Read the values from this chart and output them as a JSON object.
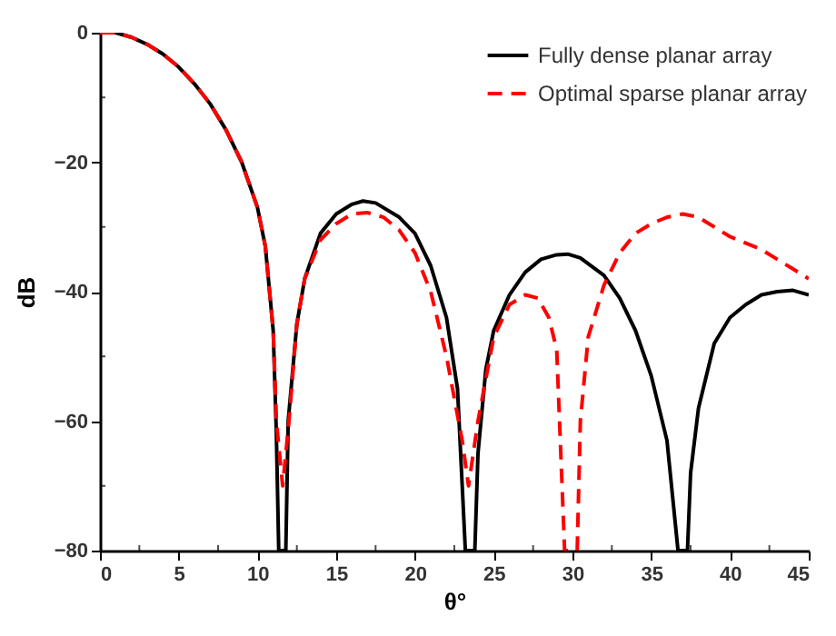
{
  "chart_data": {
    "type": "line",
    "xlabel": "θ°",
    "ylabel": "dB",
    "xlim": [
      0,
      45
    ],
    "ylim": [
      -80,
      0
    ],
    "xticks": [
      0,
      5,
      10,
      15,
      20,
      25,
      30,
      35,
      40,
      45
    ],
    "yticks": [
      -80,
      -60,
      -40,
      -20,
      0
    ],
    "legend": "top right",
    "series": [
      {
        "name": "Fully dense planar array",
        "color": "#000000",
        "line_style": "solid",
        "x": [
          0,
          1,
          2,
          3,
          4,
          5,
          6,
          7,
          8,
          9,
          10,
          10.5,
          11,
          11.2,
          11.35,
          11.8,
          11.95,
          12.5,
          13,
          14,
          15,
          16,
          16.7,
          17.5,
          19,
          20,
          21,
          22,
          22.7,
          23.2,
          23.8,
          24,
          24.5,
          25,
          26,
          27,
          28,
          29,
          29.7,
          30.5,
          32,
          33,
          34,
          35,
          36,
          36.7,
          37.3,
          37.5,
          38,
          39,
          40,
          41,
          42,
          43,
          44,
          45
        ],
        "values": [
          0,
          0,
          -0.7,
          -1.8,
          -3.3,
          -5.3,
          -7.9,
          -11,
          -15,
          -20,
          -27,
          -33,
          -46,
          -62,
          -80,
          -80,
          -60,
          -45,
          -38,
          -31,
          -28,
          -26.5,
          -26,
          -26.3,
          -28.5,
          -31,
          -36,
          -44,
          -55,
          -80,
          -80,
          -65,
          -52,
          -46,
          -40.5,
          -37,
          -35,
          -34.3,
          -34.2,
          -34.8,
          -37.5,
          -41,
          -46,
          -53,
          -63,
          -80,
          -80,
          -68,
          -58,
          -48,
          -44,
          -42,
          -40.5,
          -40,
          -39.8,
          -40.5
        ]
      },
      {
        "name": "Optimal sparse planar array",
        "color": "#ff0000",
        "line_style": "dashed",
        "x": [
          0,
          1,
          2,
          3,
          4,
          5,
          6,
          7,
          8,
          9,
          10,
          10.5,
          11,
          11.2,
          11.6,
          12,
          12.5,
          13,
          14,
          15,
          16,
          17,
          18,
          19,
          20,
          21,
          22,
          23,
          23.4,
          24,
          25,
          26,
          27,
          27.8,
          28.5,
          29,
          29.5,
          30.3,
          30.5,
          31,
          32,
          33,
          34,
          35,
          36,
          37,
          38,
          39,
          40,
          42,
          43,
          44,
          45
        ],
        "values": [
          0,
          0,
          -0.7,
          -1.8,
          -3.3,
          -5.3,
          -7.9,
          -11,
          -15,
          -20,
          -27,
          -33,
          -46,
          -60,
          -70,
          -60,
          -45,
          -38,
          -32,
          -29.5,
          -28,
          -27.8,
          -28.5,
          -30.5,
          -34,
          -40,
          -50,
          -63,
          -70,
          -60,
          -47,
          -42,
          -40.5,
          -41,
          -44,
          -49,
          -80,
          -80,
          -60,
          -47,
          -39,
          -34,
          -31,
          -29.5,
          -28.5,
          -28,
          -28.5,
          -30,
          -31.5,
          -33.5,
          -35,
          -36.5,
          -38
        ]
      }
    ]
  }
}
